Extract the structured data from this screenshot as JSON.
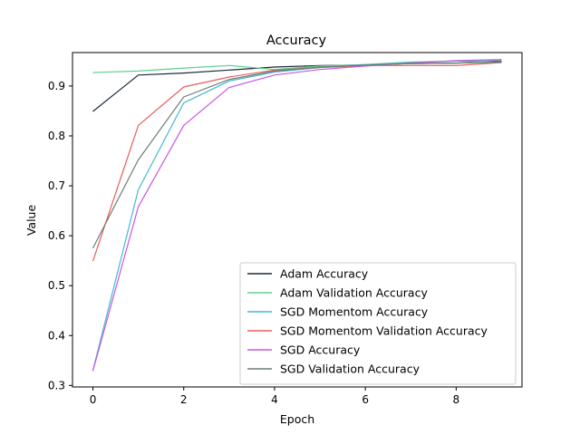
{
  "chart_data": {
    "type": "line",
    "title": "Accuracy",
    "xlabel": "Epoch",
    "ylabel": "Value",
    "x": [
      0,
      1,
      2,
      3,
      4,
      5,
      6,
      7,
      8,
      9
    ],
    "xlim": [
      -0.45,
      9.45
    ],
    "ylim": [
      0.297,
      0.967
    ],
    "xticks": [
      0,
      2,
      4,
      6,
      8
    ],
    "yticks": [
      0.3,
      0.4,
      0.5,
      0.6,
      0.7,
      0.8,
      0.9
    ],
    "grid": false,
    "legend_position": "lower-right",
    "series": [
      {
        "name": "Adam Accuracy",
        "color": "#1f2937",
        "values": [
          0.849,
          0.922,
          0.926,
          0.932,
          0.938,
          0.941,
          0.942,
          0.945,
          0.946,
          0.949
        ]
      },
      {
        "name": "Adam Validation Accuracy",
        "color": "#5fd08f",
        "values": [
          0.927,
          0.93,
          0.936,
          0.941,
          0.933,
          0.94,
          0.943,
          0.948,
          0.95,
          0.947
        ]
      },
      {
        "name": "SGD Momentom Accuracy",
        "color": "#45b7d1",
        "values": [
          0.33,
          0.692,
          0.866,
          0.91,
          0.928,
          0.937,
          0.943,
          0.947,
          0.95,
          0.951
        ]
      },
      {
        "name": "SGD Momentom Validation Accuracy",
        "color": "#e85d5d",
        "values": [
          0.549,
          0.821,
          0.898,
          0.918,
          0.932,
          0.937,
          0.941,
          0.941,
          0.941,
          0.947
        ]
      },
      {
        "name": "SGD Accuracy",
        "color": "#c757e0",
        "values": [
          0.329,
          0.658,
          0.821,
          0.897,
          0.922,
          0.933,
          0.94,
          0.946,
          0.951,
          0.953
        ]
      },
      {
        "name": "SGD Validation Accuracy",
        "color": "#6b7f74",
        "values": [
          0.575,
          0.752,
          0.878,
          0.913,
          0.93,
          0.938,
          0.942,
          0.945,
          0.946,
          0.948
        ]
      }
    ]
  }
}
